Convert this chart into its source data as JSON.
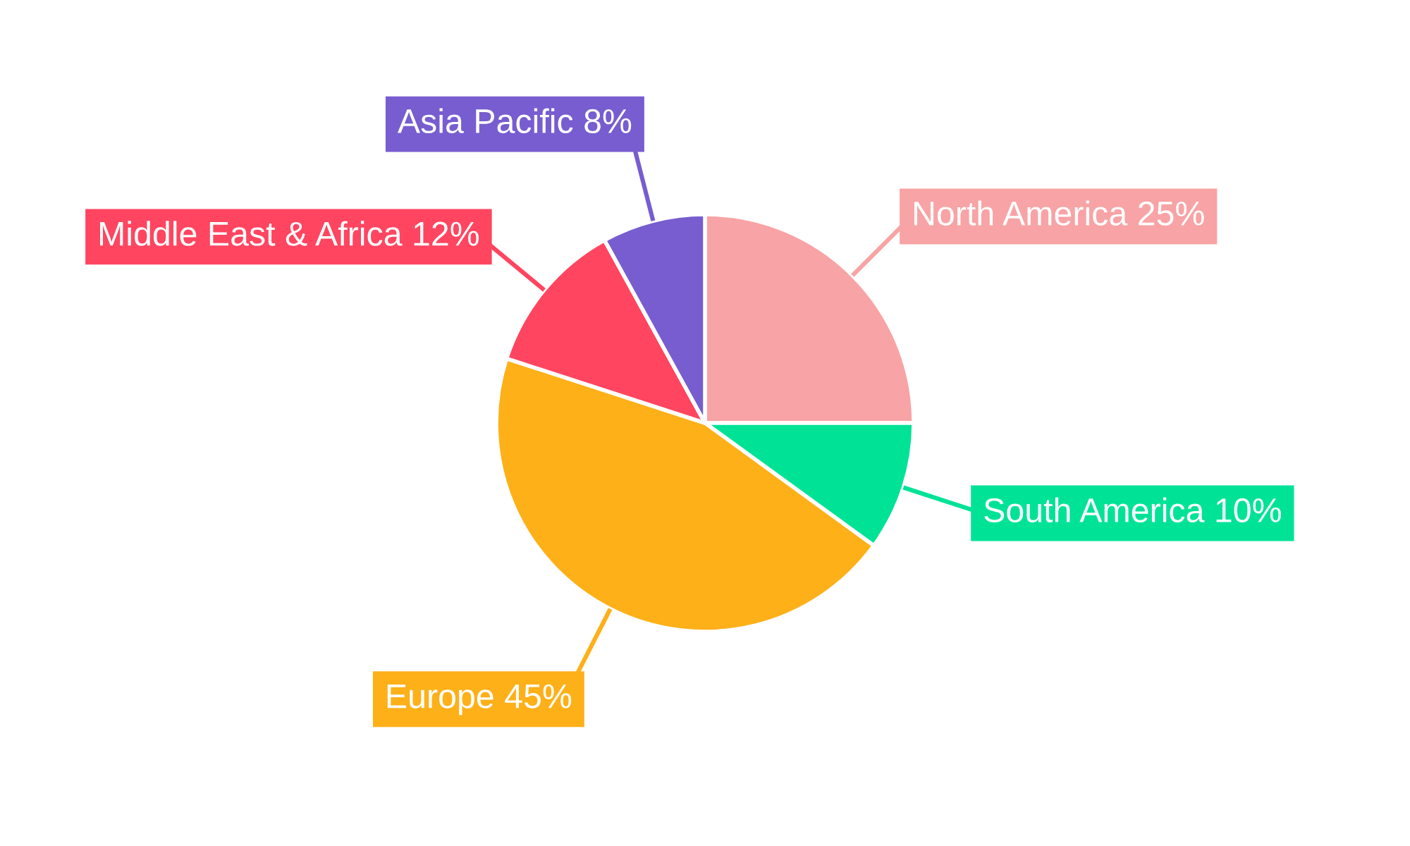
{
  "chart_data": {
    "type": "pie",
    "categories": [
      "North America",
      "South America",
      "Europe",
      "Middle East & Africa",
      "Asia Pacific"
    ],
    "values": [
      25,
      10,
      45,
      12,
      8
    ],
    "colors": [
      "#f8a3a5",
      "#00e396",
      "#feb019",
      "#ff4560",
      "#775dd0"
    ],
    "value_labels": [
      "25%",
      "10%",
      "45%",
      "12%",
      "8%"
    ]
  }
}
